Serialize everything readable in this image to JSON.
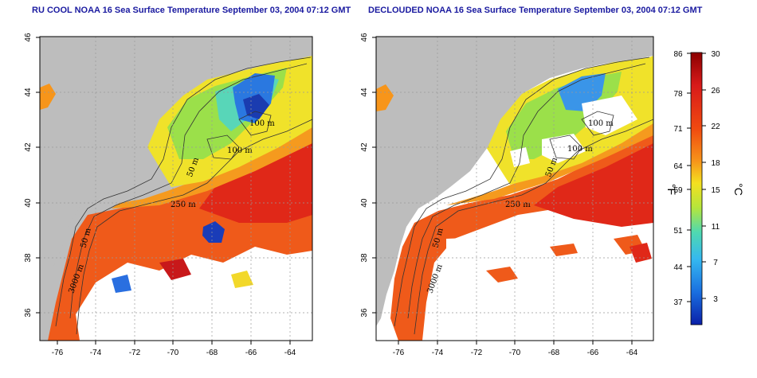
{
  "panels": [
    {
      "title": "RU COOL NOAA 16 Sea Surface Temperature September 03, 2004 07:12 GMT",
      "x_ticks": [
        "-76",
        "-74",
        "-72",
        "-70",
        "-68",
        "-66",
        "-64"
      ],
      "y_ticks": [
        "46",
        "44",
        "42",
        "40",
        "38",
        "36"
      ],
      "contours": [
        "100 m",
        "100 m",
        "50 m",
        "250 m",
        "50 m",
        "3000 m"
      ]
    },
    {
      "title": "DECLOUDED NOAA 16 Sea Surface Temperature September 03, 2004 07:12 GMT",
      "x_ticks": [
        "-76",
        "-74",
        "-72",
        "-70",
        "-68",
        "-66",
        "-64"
      ],
      "y_ticks": [
        "46",
        "44",
        "42",
        "40",
        "38",
        "36"
      ],
      "contours": [
        "100 m",
        "100 m",
        "50 m",
        "250 m",
        "50 m",
        "3000 m"
      ]
    }
  ],
  "colorbar": {
    "f_ticks": [
      "86",
      "78",
      "71",
      "64",
      "59",
      "51",
      "44",
      "37"
    ],
    "c_ticks": [
      "30",
      "26",
      "22",
      "18",
      "15",
      "11",
      "7",
      "3"
    ],
    "f_label": "°F",
    "c_label": "°C",
    "colors": [
      "#8b0000",
      "#d81a1a",
      "#f04a10",
      "#f7951a",
      "#f4e020",
      "#b5e63c",
      "#4fd9b0",
      "#35b8f0",
      "#1a6fe0",
      "#0a1fa8"
    ]
  }
}
